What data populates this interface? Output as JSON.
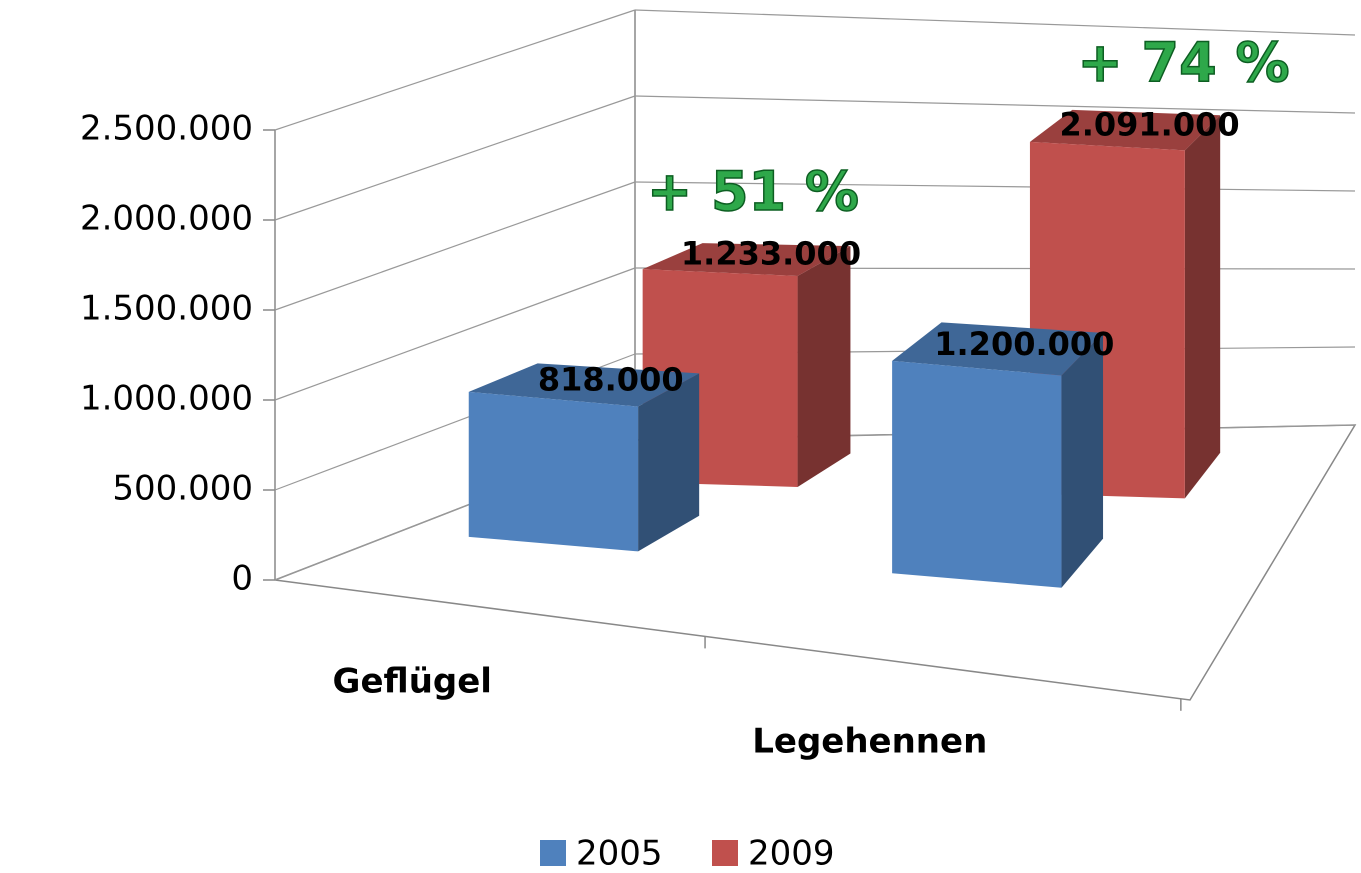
{
  "chart_data": {
    "type": "bar3d",
    "categories": [
      "Geflügel",
      "Legehennen"
    ],
    "series": [
      {
        "name": "2005",
        "color": "#4f81bd",
        "values": [
          818000,
          1200000
        ],
        "value_labels": [
          "818.000",
          "1.200.000"
        ]
      },
      {
        "name": "2009",
        "color": "#c0504d",
        "values": [
          1233000,
          2091000
        ],
        "value_labels": [
          "1.233.000",
          "2.091.000"
        ]
      }
    ],
    "annotations": [
      "+ 51 %",
      "+ 74 %"
    ],
    "ylim": [
      0,
      2500000
    ],
    "yticks": [
      0,
      {
        "value": 500000,
        "label": "500.000"
      },
      {
        "value": 1000000,
        "label": "1.000.000"
      },
      {
        "value": 1500000,
        "label": "1.500.000"
      },
      {
        "value": 2000000,
        "label": "2.000.000"
      },
      {
        "value": 2500000,
        "label": "2.500.000"
      }
    ],
    "grid": true,
    "legend": "bottom"
  }
}
